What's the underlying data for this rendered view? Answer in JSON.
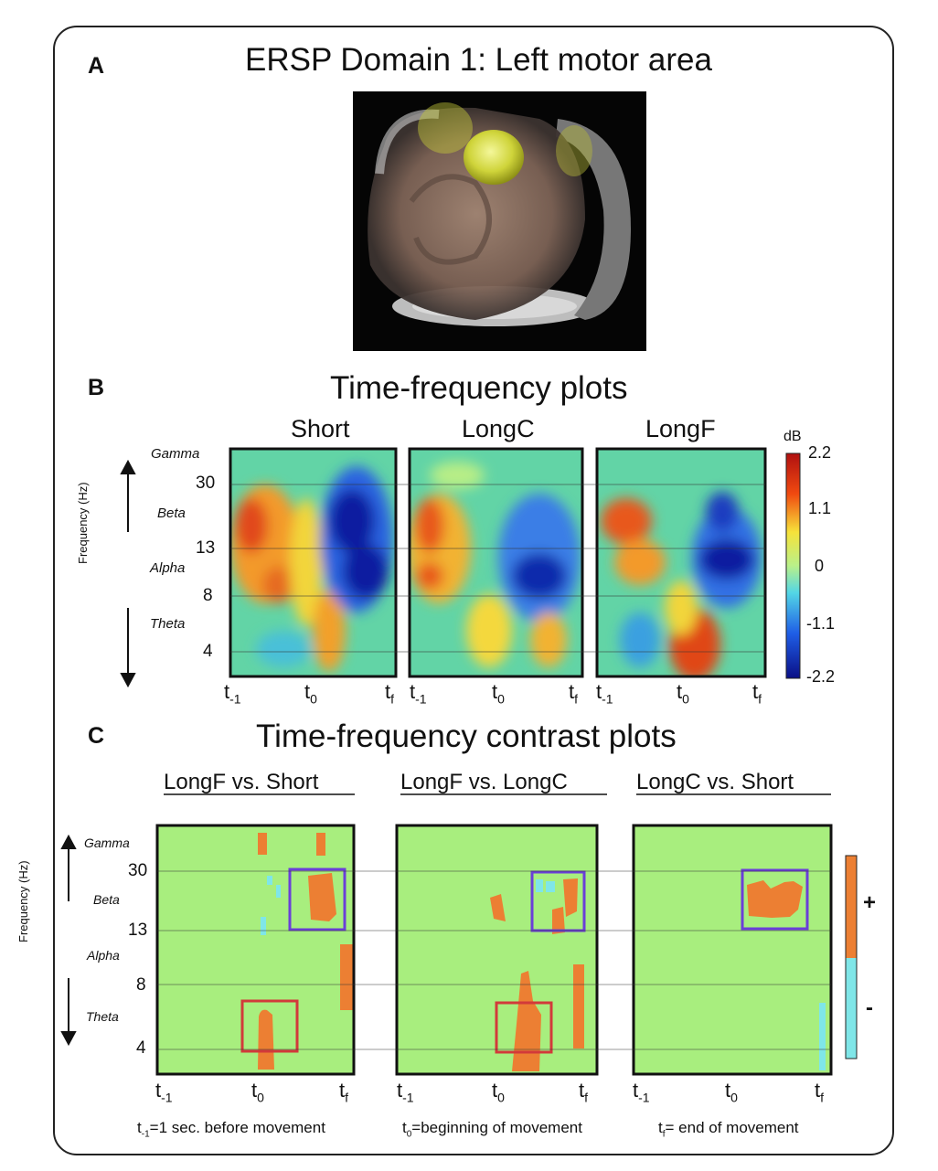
{
  "panels": {
    "a": {
      "letter": "A",
      "title": "ERSP Domain 1: Left motor area"
    },
    "b": {
      "letter": "B",
      "title": "Time-frequency plots"
    },
    "c": {
      "letter": "C",
      "title": "Time-frequency contrast plots"
    }
  },
  "freq_axis": {
    "label": "Frequency (Hz)",
    "bands": [
      "Gamma",
      "Beta",
      "Alpha",
      "Theta"
    ],
    "ticks": [
      "30",
      "13",
      "8",
      "4"
    ]
  },
  "time_ticks": {
    "tm1_base": "t",
    "tm1_sub": "-1",
    "t0_base": "t",
    "t0_sub": "0",
    "tf_base": "t",
    "tf_sub": "f"
  },
  "colorbar_b": {
    "unit": "dB",
    "ticks": [
      "2.2",
      "1.1",
      "0",
      "-1.1",
      "-2.2"
    ]
  },
  "colorbar_c": {
    "plus": "+",
    "minus": "-"
  },
  "chart_data": [
    {
      "type": "heatmap",
      "title": "Short",
      "xlabel": "",
      "ylabel": "Frequency (Hz)",
      "color_range": [
        -2.2,
        2.2
      ],
      "colorbar_label": "dB"
    },
    {
      "type": "heatmap",
      "title": "LongC",
      "xlabel": "",
      "ylabel": "Frequency (Hz)",
      "color_range": [
        -2.2,
        2.2
      ],
      "colorbar_label": "dB"
    },
    {
      "type": "heatmap",
      "title": "LongF",
      "xlabel": "",
      "ylabel": "Frequency (Hz)",
      "color_range": [
        -2.2,
        2.2
      ],
      "colorbar_label": "dB"
    },
    {
      "type": "heatmap",
      "title": "LongF vs. Short"
    },
    {
      "type": "heatmap",
      "title": "LongF vs. LongC"
    },
    {
      "type": "heatmap",
      "title": "LongC vs. Short"
    }
  ],
  "footnote": {
    "a_sub": "-1",
    "a_text": "=1 sec. before movement",
    "b_sub": "0",
    "b_text": "=beginning of movement",
    "c_sub": "f",
    "c_text": "= end of movement"
  },
  "colors": {
    "contrast_bg": "#a8ee7e",
    "contrast_pos": "#ec7f33",
    "contrast_neg": "#7fe6e8",
    "beta_box": "#6a3fd8",
    "theta_box": "#d23a3a"
  }
}
